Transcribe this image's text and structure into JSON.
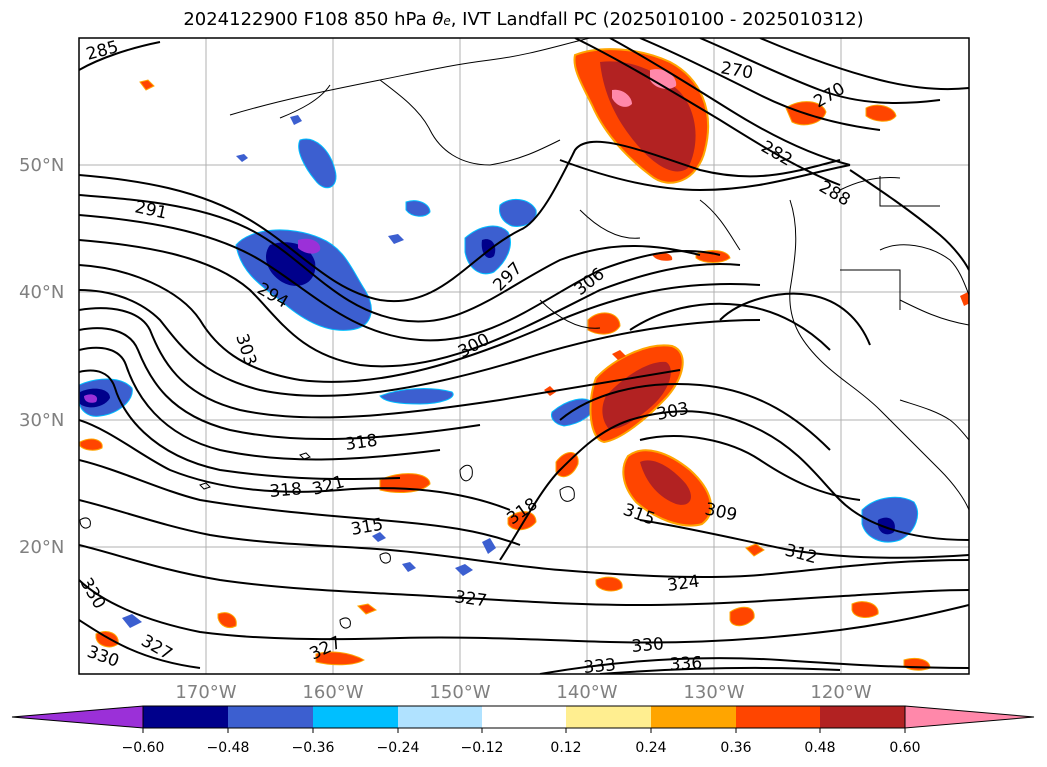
{
  "title": {
    "run": "2024122900",
    "forecast": "F108",
    "level": "850 hPa",
    "variable_symbol": "θ",
    "variable_subscript": "e",
    "description": ", IVT Landfall PC (2025010100 - 2025010312)"
  },
  "map": {
    "lon_ticks": [
      "170°W",
      "160°W",
      "150°W",
      "140°W",
      "130°W",
      "120°W"
    ],
    "lat_ticks": [
      "50°N",
      "40°N",
      "30°N",
      "20°N"
    ]
  },
  "contour_labels": [
    "285",
    "291",
    "294",
    "297",
    "300",
    "303",
    "306",
    "315",
    "318",
    "321",
    "318",
    "315",
    "318",
    "303",
    "309",
    "312",
    "324",
    "327",
    "327",
    "327",
    "330",
    "330",
    "330",
    "333",
    "336",
    "270",
    "270",
    "282",
    "288"
  ],
  "colorbar": {
    "colors": [
      "#9b30d8",
      "#00008b",
      "#3c5fd0",
      "#00bfff",
      "#b0e2ff",
      "#ffffff",
      "#ffee90",
      "#ffa500",
      "#ff4500",
      "#b22222",
      "#ff88aa"
    ],
    "tick_labels": [
      "−0.60",
      "−0.48",
      "−0.36",
      "−0.24",
      "−0.12",
      "0.12",
      "0.24",
      "0.36",
      "0.48",
      "0.60"
    ]
  },
  "icons": [
    "coastline-icon",
    "color-extension-arrow-icon"
  ]
}
